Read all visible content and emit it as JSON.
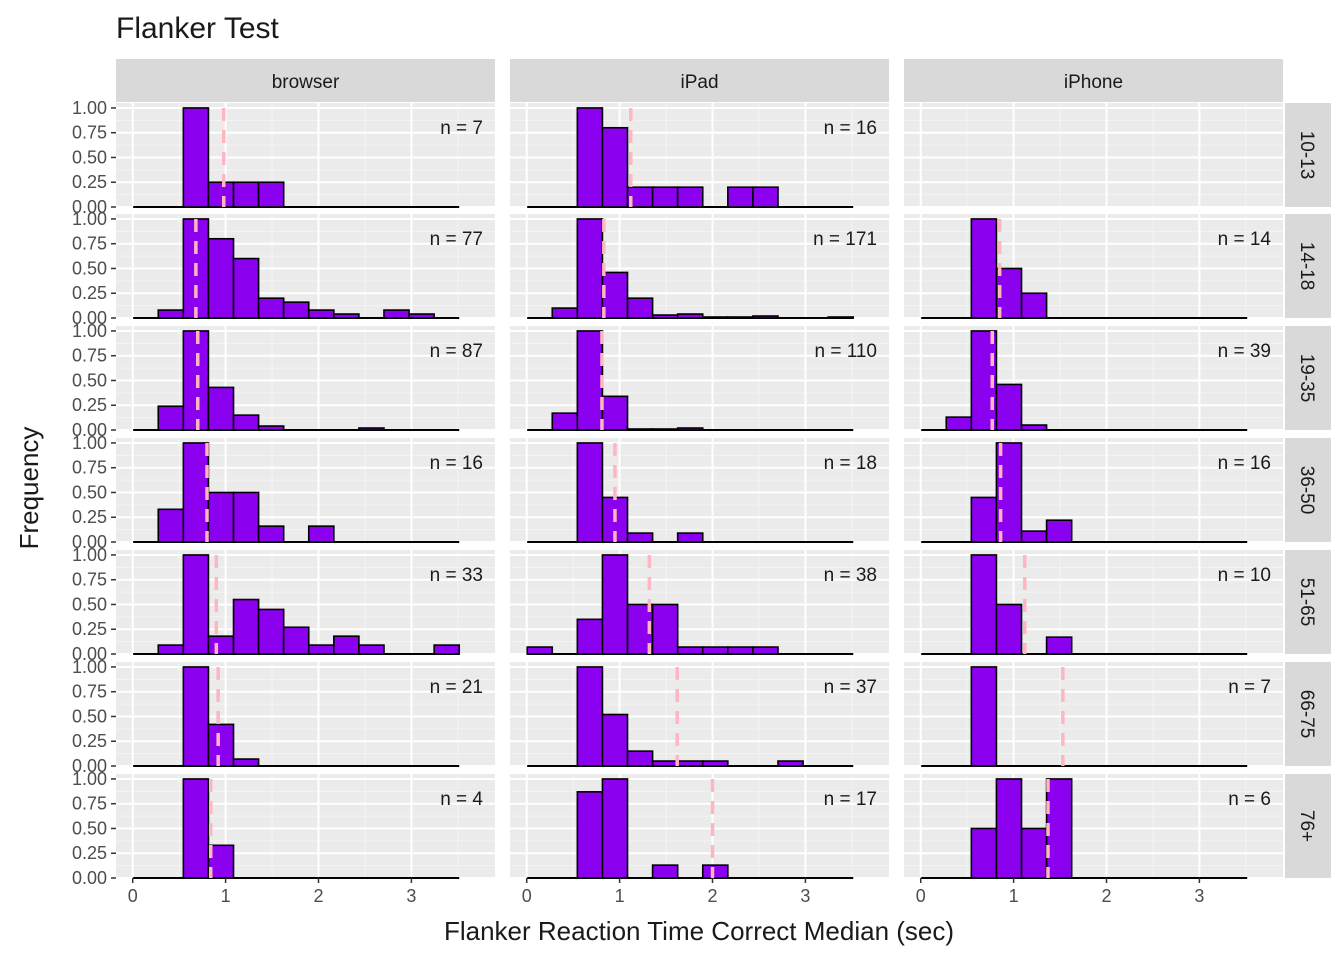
{
  "chart_data": {
    "type": "bar",
    "title": "Flanker Test",
    "xlabel": "Flanker Reaction Time Correct Median (sec)",
    "ylabel": "Frequency",
    "xlim": [
      -0.18,
      3.9
    ],
    "ylim": [
      0,
      1.05
    ],
    "x_ticks": [
      "0",
      "1",
      "2",
      "3"
    ],
    "y_ticks": [
      "0.00",
      "0.25",
      "0.50",
      "0.75",
      "1.00"
    ],
    "bin_width": 0.27,
    "bin_start": 0.005,
    "num_bins": 13,
    "bar_color": "#8B00EE",
    "median_line_color": "#FFB6C1",
    "panel_background": "#EBEBEB",
    "strip_background": "#D9D9D9",
    "columns": [
      "browser",
      "iPad",
      "iPhone"
    ],
    "rows": [
      "10-13",
      "14-18",
      "19-35",
      "36-50",
      "51-65",
      "66-75",
      "76+"
    ],
    "panels": [
      {
        "column": "browser",
        "row": "10-13",
        "n_label": "n = 7",
        "median": 0.98,
        "counts": [
          0,
          0,
          1.0,
          0.25,
          0.25,
          0.25,
          0,
          0,
          0,
          0,
          0,
          0,
          0
        ]
      },
      {
        "column": "iPad",
        "row": "10-13",
        "n_label": "n = 16",
        "median": 1.12,
        "counts": [
          0,
          0,
          1.0,
          0.8,
          0.2,
          0.2,
          0.2,
          0,
          0.2,
          0.2,
          0,
          0,
          0
        ]
      },
      {
        "column": "iPhone",
        "row": "10-13",
        "n_label": "",
        "median": null,
        "counts": []
      },
      {
        "column": "browser",
        "row": "14-18",
        "n_label": "n = 77",
        "median": 0.68,
        "counts": [
          0,
          0.08,
          1.0,
          0.8,
          0.6,
          0.2,
          0.16,
          0.08,
          0.04,
          0,
          0.08,
          0.04,
          0
        ]
      },
      {
        "column": "iPad",
        "row": "14-18",
        "n_label": "n = 171",
        "median": 0.83,
        "counts": [
          0,
          0.1,
          1.0,
          0.46,
          0.2,
          0.03,
          0.04,
          0.01,
          0.01,
          0.02,
          0,
          0,
          0.01
        ]
      },
      {
        "column": "iPhone",
        "row": "14-18",
        "n_label": "n = 14",
        "median": 0.85,
        "counts": [
          0,
          0,
          1.0,
          0.5,
          0.25,
          0,
          0,
          0,
          0,
          0,
          0,
          0,
          0
        ]
      },
      {
        "column": "browser",
        "row": "19-35",
        "n_label": "n = 87",
        "median": 0.7,
        "counts": [
          0,
          0.24,
          1.0,
          0.43,
          0.15,
          0.04,
          0,
          0,
          0,
          0.02,
          0,
          0,
          0
        ]
      },
      {
        "column": "iPad",
        "row": "19-35",
        "n_label": "n = 110",
        "median": 0.81,
        "counts": [
          0,
          0.17,
          1.0,
          0.34,
          0.01,
          0.01,
          0.02,
          0,
          0,
          0,
          0,
          0,
          0
        ]
      },
      {
        "column": "iPhone",
        "row": "19-35",
        "n_label": "n = 39",
        "median": 0.77,
        "counts": [
          0,
          0.13,
          1.0,
          0.46,
          0.05,
          0,
          0,
          0,
          0,
          0,
          0,
          0,
          0
        ]
      },
      {
        "column": "browser",
        "row": "36-50",
        "n_label": "n = 16",
        "median": 0.8,
        "counts": [
          0,
          0.33,
          1.0,
          0.5,
          0.5,
          0.16,
          0,
          0.16,
          0,
          0,
          0,
          0,
          0
        ]
      },
      {
        "column": "iPad",
        "row": "36-50",
        "n_label": "n = 18",
        "median": 0.95,
        "counts": [
          0,
          0,
          1.0,
          0.45,
          0.09,
          0,
          0.09,
          0,
          0,
          0,
          0,
          0,
          0
        ]
      },
      {
        "column": "iPhone",
        "row": "36-50",
        "n_label": "n = 16",
        "median": 0.86,
        "counts": [
          0,
          0,
          0.45,
          1.0,
          0.11,
          0.22,
          0,
          0,
          0,
          0,
          0,
          0,
          0
        ]
      },
      {
        "column": "browser",
        "row": "51-65",
        "n_label": "n = 33",
        "median": 0.9,
        "counts": [
          0,
          0.09,
          1.0,
          0.18,
          0.55,
          0.45,
          0.27,
          0.09,
          0.18,
          0.09,
          0,
          0,
          0.09
        ]
      },
      {
        "column": "iPad",
        "row": "51-65",
        "n_label": "n = 38",
        "median": 1.32,
        "counts": [
          0.07,
          0,
          0.35,
          1.0,
          0.5,
          0.5,
          0.07,
          0.07,
          0.07,
          0.07,
          0,
          0,
          0
        ]
      },
      {
        "column": "iPhone",
        "row": "51-65",
        "n_label": "n = 10",
        "median": 1.12,
        "counts": [
          0,
          0,
          1.0,
          0.5,
          0,
          0.17,
          0,
          0,
          0,
          0,
          0,
          0,
          0
        ]
      },
      {
        "column": "browser",
        "row": "66-75",
        "n_label": "n = 21",
        "median": 0.92,
        "counts": [
          0,
          0,
          1.0,
          0.42,
          0.07,
          0,
          0,
          0,
          0,
          0,
          0,
          0,
          0
        ]
      },
      {
        "column": "iPad",
        "row": "66-75",
        "n_label": "n = 37",
        "median": 1.62,
        "counts": [
          0,
          0,
          1.0,
          0.52,
          0.15,
          0.05,
          0.05,
          0.05,
          0,
          0,
          0.05,
          0,
          0
        ]
      },
      {
        "column": "iPhone",
        "row": "66-75",
        "n_label": "n = 7",
        "median": 1.53,
        "counts": [
          0,
          0,
          1.0,
          0,
          0,
          0,
          0,
          0,
          0,
          0,
          0,
          0,
          0
        ]
      },
      {
        "column": "browser",
        "row": "76+",
        "n_label": "n = 4",
        "median": 0.84,
        "counts": [
          0,
          0,
          1.0,
          0.33,
          0,
          0,
          0,
          0,
          0,
          0,
          0,
          0,
          0
        ]
      },
      {
        "column": "iPad",
        "row": "76+",
        "n_label": "n = 17",
        "median": 2.0,
        "counts": [
          0,
          0,
          0.87,
          1.0,
          0,
          0.13,
          0,
          0.13,
          0,
          0,
          0,
          0,
          0
        ]
      },
      {
        "column": "iPhone",
        "row": "76+",
        "n_label": "n = 6",
        "median": 1.37,
        "counts": [
          0,
          0,
          0.5,
          1.0,
          0.5,
          1.0,
          0,
          0,
          0,
          0,
          0,
          0,
          0
        ]
      }
    ]
  }
}
